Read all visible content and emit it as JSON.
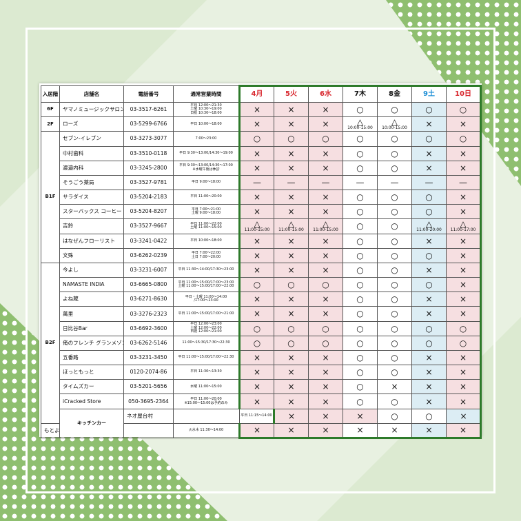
{
  "headers": {
    "floor": "入居階",
    "store": "店舗名",
    "phone": "電話番号",
    "hours": "通常営業時間"
  },
  "days": [
    {
      "label": "4月",
      "color": "red",
      "bg": "pink"
    },
    {
      "label": "5火",
      "color": "red",
      "bg": "pink"
    },
    {
      "label": "6水",
      "color": "red",
      "bg": "pink"
    },
    {
      "label": "7木",
      "color": "black",
      "bg": "white"
    },
    {
      "label": "8金",
      "color": "black",
      "bg": "white"
    },
    {
      "label": "9土",
      "color": "blue",
      "bg": "blue"
    },
    {
      "label": "10日",
      "color": "red",
      "bg": "pink"
    }
  ],
  "rows": [
    {
      "floor": "6F",
      "span": 1,
      "name": "ヤマノミュージックサロン大手町",
      "phone": "03-3517-6261",
      "hours": [
        "平日 12:00～21:30",
        "土曜 10:30～19:00",
        "日祝 10:30～18:00"
      ],
      "days": [
        "×",
        "×",
        "×",
        "○",
        "○",
        "○",
        "○"
      ]
    },
    {
      "floor": "2F",
      "span": 1,
      "name": "ローズ",
      "phone": "03-5299-6766",
      "hours": [
        "平日 10:00～18:00"
      ],
      "days": [
        "×",
        "×",
        "×",
        "△|10:00-15:00",
        "△|10:00-15:00",
        "×",
        "×"
      ]
    },
    {
      "floor": "B1F",
      "span": 9,
      "name": "セブン-イレブン",
      "phone": "03-3273-3077",
      "hours": [
        "7:00～23:00"
      ],
      "days": [
        "○",
        "○",
        "○",
        "○",
        "○",
        "○",
        "○"
      ]
    },
    {
      "name": "中村歯科",
      "phone": "03-3510-0118",
      "hours": [
        "平日 9:30～13:00/14:30～19:00"
      ],
      "days": [
        "×",
        "×",
        "×",
        "○",
        "○",
        "×",
        "×"
      ]
    },
    {
      "name": "渡邉内科",
      "phone": "03-3245-2800",
      "hours": [
        "平日 9:30～13:00/14:30～17:00",
        "※水曜午後は休診"
      ],
      "days": [
        "×",
        "×",
        "×",
        "○",
        "○",
        "×",
        "×"
      ]
    },
    {
      "name": "そうごう薬局",
      "phone": "03-3527-9781",
      "hours": [
        "平日 9:00～18:00"
      ],
      "days": [
        "—",
        "—",
        "—",
        "—",
        "—",
        "—",
        "—"
      ]
    },
    {
      "name": "サラダイス",
      "phone": "03-5204-2183",
      "hours": [
        "平日 11:00～20:00"
      ],
      "days": [
        "×",
        "×",
        "×",
        "○",
        "○",
        "○",
        "×"
      ]
    },
    {
      "name": "スターバックス コーヒー",
      "phone": "03-5204-8207",
      "hours": [
        "平日 7:00～21:00",
        "土曜 9:00～18:00"
      ],
      "days": [
        "×",
        "×",
        "×",
        "○",
        "○",
        "○",
        "×"
      ]
    },
    {
      "name": "吉鈴",
      "phone": "03-3527-9667",
      "hours": [
        "平日 11:00～22:00",
        "土曜 11:00～15:00"
      ],
      "days": [
        "△|11:00-15:00",
        "△|11:00-15:00",
        "△|11:00-15:00",
        "○",
        "○",
        "△|11:00-20:00",
        "△|11:00-17:00"
      ]
    },
    {
      "name": "はなぜんフローリスト",
      "phone": "03-3241-0422",
      "hours": [
        "平日 10:00～18:00"
      ],
      "days": [
        "×",
        "×",
        "×",
        "○",
        "○",
        "×",
        "×"
      ]
    },
    {
      "name": "文殊",
      "phone": "03-6262-0239",
      "hours": [
        "平日 7:00～22:00",
        "土日 7:00～20:00"
      ],
      "days": [
        "×",
        "×",
        "×",
        "○",
        "○",
        "○",
        "×"
      ]
    },
    {
      "floor": "B2F",
      "span": 11,
      "name": "今よし",
      "phone": "03-3231-6007",
      "hours": [
        "平日 11:30～14:00/17:30～23:00"
      ],
      "days": [
        "×",
        "×",
        "×",
        "○",
        "○",
        "×",
        "×"
      ]
    },
    {
      "name": "NAMASTE INDIA",
      "phone": "03-6665-0800",
      "hours": [
        "平日 11:00～15:00/17:00～23:00",
        "土曜 11:00～15:00/17:00～22:00"
      ],
      "days": [
        "○",
        "○",
        "○",
        "○",
        "○",
        "○",
        "×"
      ]
    },
    {
      "name": "よね蔵",
      "phone": "03-6271-8630",
      "hours": [
        "平日・土曜 11:00～14:00",
        "/17:00～23:00"
      ],
      "days": [
        "×",
        "×",
        "×",
        "○",
        "○",
        "×",
        "×"
      ]
    },
    {
      "name": "萬里",
      "phone": "03-3276-2323",
      "hours": [
        "平日 11:00～15:00/17:00～21:00"
      ],
      "days": [
        "×",
        "×",
        "×",
        "○",
        "○",
        "×",
        "×"
      ]
    },
    {
      "name": "日比谷Bar",
      "phone": "03-6692-3600",
      "hours": [
        "平日 12:00～23:00",
        "土曜 12:00～22:00",
        "日祝 12:00～21:00"
      ],
      "days": [
        "○",
        "○",
        "○",
        "○",
        "○",
        "○",
        "○"
      ]
    },
    {
      "name": "俺のフレンチ グランメゾン",
      "phone": "03-6262-5146",
      "hours": [
        "11:00～15:30/17:30～22:30"
      ],
      "days": [
        "○",
        "○",
        "○",
        "○",
        "○",
        "○",
        "○"
      ]
    },
    {
      "name": "五番路",
      "phone": "03-3231-3450",
      "hours": [
        "平日 11:00～15:00/17:00～22:30"
      ],
      "days": [
        "×",
        "×",
        "×",
        "○",
        "○",
        "×",
        "×"
      ]
    },
    {
      "name": "ほっともっと",
      "phone": "0120-2074-86",
      "hours": [
        "平日 11:30～13:30"
      ],
      "days": [
        "×",
        "×",
        "×",
        "○",
        "○",
        "×",
        "×"
      ]
    },
    {
      "name": "タイムズカー",
      "phone": "03-5201-5656",
      "hours": [
        "水曜 11:00～15:00"
      ],
      "days": [
        "×",
        "×",
        "×",
        "○",
        "×",
        "×",
        "×"
      ]
    },
    {
      "name": "iCracked Store",
      "phone": "050-3695-2364",
      "hours": [
        "平日 11:00～20:00",
        "※15:00～15:00は予約のみ"
      ],
      "days": [
        "×",
        "×",
        "×",
        "○",
        "○",
        "×",
        "×"
      ]
    },
    {
      "floor": "キッチンカー",
      "span": 2,
      "name": "ネオ屋台村",
      "phone": "",
      "hours": [
        "平日 11:15～14:00"
      ],
      "days": [
        "×",
        "×",
        "×",
        "○",
        "○",
        "×",
        "×"
      ]
    },
    {
      "name": "もとよし珈琲",
      "phone": "",
      "hours": [
        "火水木 11:30～14:00"
      ],
      "days": [
        "×",
        "×",
        "×",
        "×",
        "×",
        "×",
        "×"
      ]
    }
  ]
}
